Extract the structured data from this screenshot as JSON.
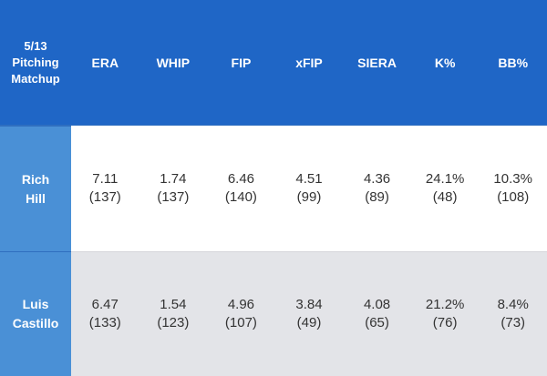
{
  "header": {
    "title": "5/13\nPitching\nMatchup",
    "columns": [
      "ERA",
      "WHIP",
      "FIP",
      "xFIP",
      "SIERA",
      "K%",
      "BB%"
    ]
  },
  "rows": [
    {
      "player": "Rich\nHill",
      "values": [
        "7.11",
        "1.74",
        "6.46",
        "4.51",
        "4.36",
        "24.1%",
        "10.3%"
      ],
      "ranks": [
        "(137)",
        "(137)",
        "(140)",
        "(99)",
        "(89)",
        "(48)",
        "(108)"
      ]
    },
    {
      "player": "Luis\nCastillo",
      "values": [
        "6.47",
        "1.54",
        "4.96",
        "3.84",
        "4.08",
        "21.2%",
        "8.4%"
      ],
      "ranks": [
        "(133)",
        "(123)",
        "(107)",
        "(49)",
        "(65)",
        "(76)",
        "(73)"
      ]
    }
  ],
  "colors": {
    "header_bg": "#1f66c6",
    "rowhead_bg": "#4a90d6",
    "alt_row_bg": "#e3e4e8"
  }
}
